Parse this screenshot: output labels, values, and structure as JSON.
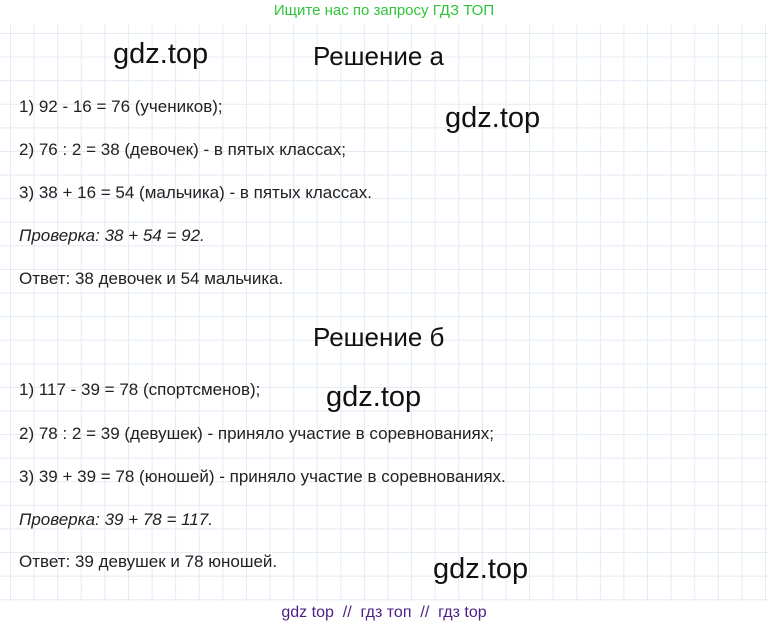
{
  "banner": "Ищите нас по запросу ГДЗ ТОП",
  "watermark": "gdz.top",
  "section_a": {
    "title": "Решение а",
    "lines": [
      "1) 92 - 16 = 76 (учеников);",
      "2) 76 : 2 = 38 (девочек) - в пятых классах;",
      "3) 38 + 16 = 54 (мальчика) - в пятых классах."
    ],
    "check_label": "Проверка:",
    "check": " 38 + 54 = 92.",
    "answer": "Ответ: 38 девочек и 54 мальчика."
  },
  "section_b": {
    "title": "Решение б",
    "lines": [
      "1) 117 - 39 = 78 (спортсменов);",
      "2) 78 : 2 = 39 (девушек) - приняло участие в соревнованиях;",
      "3) 39 + 39 = 78 (юношей) - приняло участие в соревнованиях."
    ],
    "check_label": "Проверка:",
    "check": " 39 + 78 = 117.",
    "answer": "Ответ: 39 девушек и 78 юношей."
  },
  "footer": "gdz top  //  гдз топ  //  гдз top",
  "colors": {
    "banner": "#2fc43a",
    "footer": "#4b1f86",
    "grid": "#e3ebf4"
  }
}
